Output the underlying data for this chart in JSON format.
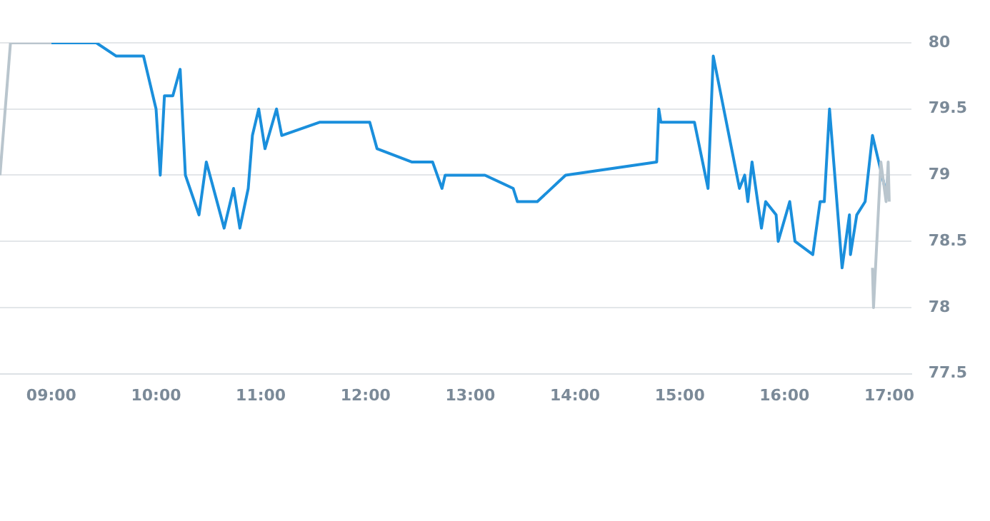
{
  "chart_data": {
    "type": "line",
    "xlim": [
      8.51,
      17.21
    ],
    "ylim": [
      77.5,
      80
    ],
    "xticks": [
      {
        "value": 9,
        "label": "09:00"
      },
      {
        "value": 10,
        "label": "10:00"
      },
      {
        "value": 11,
        "label": "11:00"
      },
      {
        "value": 12,
        "label": "12:00"
      },
      {
        "value": 13,
        "label": "13:00"
      },
      {
        "value": 14,
        "label": "14:00"
      },
      {
        "value": 15,
        "label": "15:00"
      },
      {
        "value": 16,
        "label": "16:00"
      },
      {
        "value": 17,
        "label": "17:00"
      }
    ],
    "yticks": [
      77.5,
      78,
      78.5,
      79,
      79.5,
      80
    ],
    "grid": "y",
    "legend": false,
    "marker": "none",
    "line_style": "solid",
    "series": [
      {
        "color": "#b9c5cd",
        "x": [
          8.51,
          8.61,
          9.0,
          12,
          16.84,
          16.85,
          16.92,
          16.97,
          16.99,
          17.0
        ],
        "values": [
          79,
          80,
          80,
          null,
          78.3,
          78.0,
          79.1,
          78.8,
          79.1,
          78.8
        ]
      },
      {
        "color": "#1a8fdc",
        "x": [
          9.0,
          9.43,
          9.62,
          9.88,
          10.0,
          10.04,
          10.08,
          10.16,
          10.23,
          10.28,
          10.41,
          10.48,
          10.65,
          10.74,
          10.8,
          10.88,
          10.92,
          10.98,
          11.04,
          11.15,
          11.2,
          11.56,
          12.04,
          12.11,
          12.44,
          12.64,
          12.73,
          12.76,
          13.14,
          13.41,
          13.45,
          13.64,
          13.91,
          14.78,
          14.8,
          14.82,
          15.14,
          15.27,
          15.32,
          15.57,
          15.62,
          15.65,
          15.69,
          15.78,
          15.82,
          15.92,
          15.94,
          16.05,
          16.1,
          16.27,
          16.34,
          16.38,
          16.43,
          16.55,
          16.62,
          16.63,
          16.69,
          16.77,
          16.84,
          16.9,
          16.96
        ],
        "values": [
          80,
          80,
          79.9,
          79.9,
          79.5,
          79.0,
          79.6,
          79.6,
          79.8,
          79.0,
          78.7,
          79.1,
          78.6,
          78.9,
          78.6,
          78.9,
          79.3,
          79.5,
          79.2,
          79.5,
          79.3,
          79.4,
          79.4,
          79.2,
          79.1,
          79.1,
          78.9,
          79.0,
          79.0,
          78.9,
          78.8,
          78.8,
          79.0,
          79.1,
          79.5,
          79.4,
          79.4,
          78.9,
          79.9,
          78.9,
          79.0,
          78.8,
          79.1,
          78.6,
          78.8,
          78.7,
          78.5,
          78.8,
          78.5,
          78.4,
          78.8,
          78.8,
          79.5,
          78.3,
          78.7,
          78.4,
          78.7,
          78.8,
          79.3,
          79.1,
          78.9
        ]
      }
    ]
  }
}
